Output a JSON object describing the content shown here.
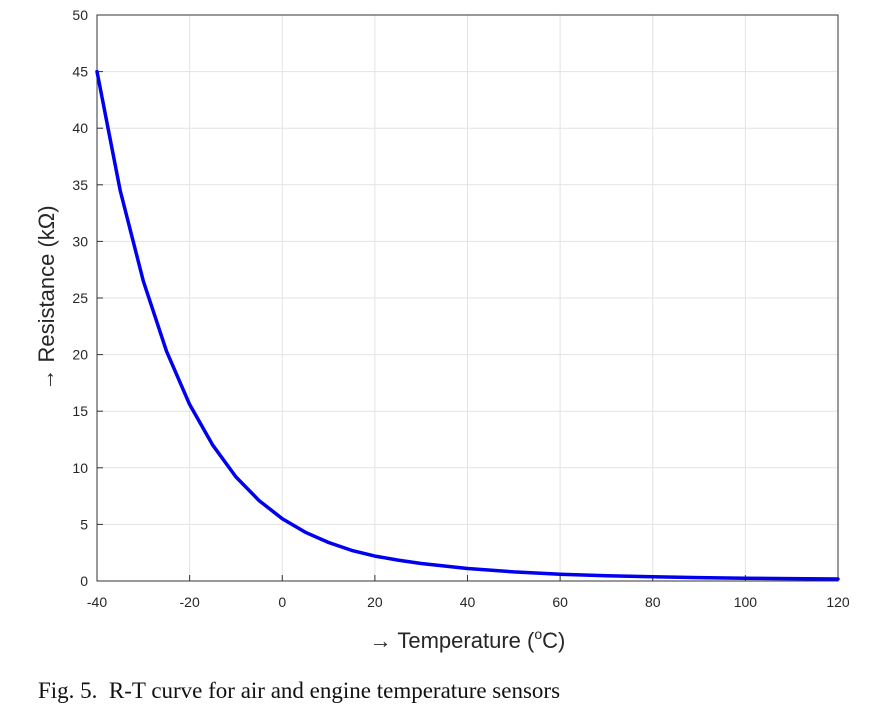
{
  "chart_data": {
    "type": "line",
    "xlabel": "→ Temperature (°C)",
    "xlabel_parts": {
      "prefix": "→ Temperature (",
      "sup": "o",
      "suffix": "C)"
    },
    "ylabel": "→ Resistance (kΩ)",
    "xlim": [
      -40,
      120
    ],
    "ylim": [
      0,
      50
    ],
    "xticks": [
      -40,
      -20,
      0,
      20,
      40,
      60,
      80,
      100,
      120
    ],
    "yticks": [
      0,
      5,
      10,
      15,
      20,
      25,
      30,
      35,
      40,
      45,
      50
    ],
    "grid": true,
    "series": [
      {
        "color": "#0000ee",
        "x": [
          -40,
          -35,
          -30,
          -25,
          -20,
          -15,
          -10,
          -5,
          0,
          5,
          10,
          15,
          20,
          25,
          30,
          40,
          50,
          60,
          70,
          80,
          90,
          100,
          110,
          120
        ],
        "y": [
          45.0,
          34.5,
          26.5,
          20.3,
          15.6,
          12.0,
          9.2,
          7.1,
          5.5,
          4.3,
          3.4,
          2.7,
          2.2,
          1.85,
          1.55,
          1.1,
          0.8,
          0.6,
          0.47,
          0.37,
          0.3,
          0.25,
          0.21,
          0.18
        ]
      }
    ]
  },
  "caption": "Fig. 5.  R-T curve for air and engine temperature sensors"
}
